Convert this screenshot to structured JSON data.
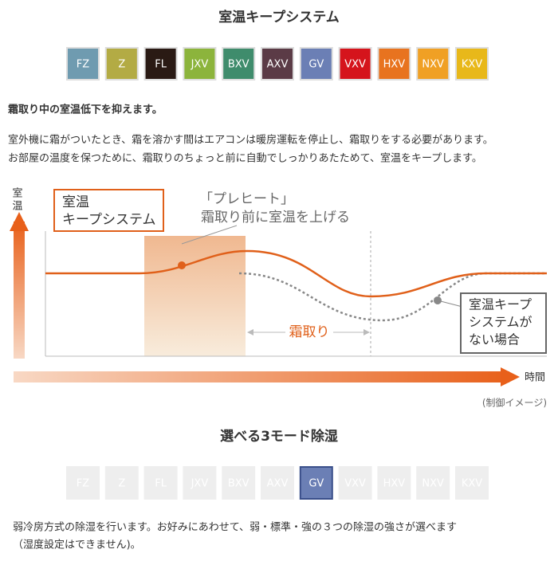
{
  "section1": {
    "title": "室温キープシステム",
    "badges": [
      {
        "label": "FZ",
        "color": "#6f9bb0"
      },
      {
        "label": "Z",
        "color": "#b3ab44"
      },
      {
        "label": "FL",
        "color": "#2a1a14"
      },
      {
        "label": "JXV",
        "color": "#8cb43c"
      },
      {
        "label": "BXV",
        "color": "#3f8c6c"
      },
      {
        "label": "AXV",
        "color": "#5b3b46"
      },
      {
        "label": "GV",
        "color": "#6b7fb5"
      },
      {
        "label": "VXV",
        "color": "#d5141c"
      },
      {
        "label": "HXV",
        "color": "#e8731f"
      },
      {
        "label": "NXV",
        "color": "#f0a024"
      },
      {
        "label": "KXV",
        "color": "#e8b81a"
      }
    ],
    "heading": "霜取り中の室温低下を抑えます。",
    "body": [
      "室外機に霜がついたとき、霜を溶かす間はエアコンは暖房運転を停止し、霜取りをする必要があります。",
      "お部屋の温度を保つために、霜取りのちょっと前に自動でしっかりあたためて、室温をキープします。"
    ]
  },
  "diagram": {
    "y_label": [
      "室",
      "温"
    ],
    "x_label": "時間",
    "callout_keep": [
      "室温",
      "キープシステム"
    ],
    "preheat": [
      "「プレヒート」",
      "霜取り前に室温を上げる"
    ],
    "defrost": "霜取り",
    "callout_none": [
      "室温キープ",
      "システムが",
      "ない場合"
    ],
    "caption": "(制御イメージ)"
  },
  "section2": {
    "title": "選べる3モード除湿",
    "badges": [
      {
        "label": "FZ",
        "active": false
      },
      {
        "label": "Z",
        "active": false
      },
      {
        "label": "FL",
        "active": false
      },
      {
        "label": "JXV",
        "active": false
      },
      {
        "label": "BXV",
        "active": false
      },
      {
        "label": "AXV",
        "active": false
      },
      {
        "label": "GV",
        "active": true
      },
      {
        "label": "VXV",
        "active": false
      },
      {
        "label": "HXV",
        "active": false
      },
      {
        "label": "NXV",
        "active": false
      },
      {
        "label": "KXV",
        "active": false
      }
    ],
    "body": [
      "弱冷房方式の除湿を行います。お好みにあわせて、弱・標準・強の３つの除湿の強さが選べます",
      "（湿度設定はできません)。"
    ]
  }
}
